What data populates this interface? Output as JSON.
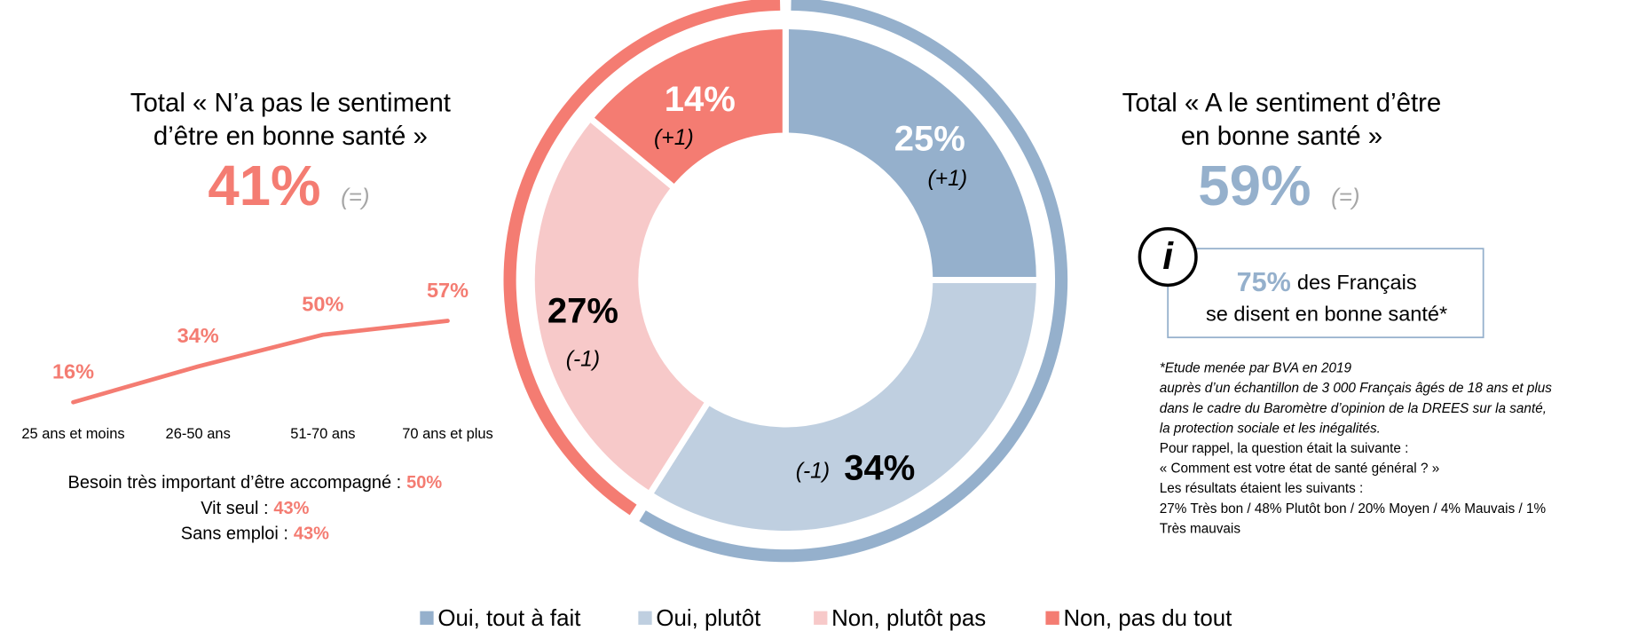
{
  "chart_data": [
    {
      "type": "pie",
      "categories": [
        "Oui, tout à fait",
        "Oui, plutôt",
        "Non, plutôt pas",
        "Non, pas du tout"
      ],
      "values": [
        25,
        34,
        27,
        14
      ],
      "value_labels": [
        "25%",
        "34%",
        "27%",
        "14%"
      ],
      "changes": [
        "(+1)",
        "(-1)",
        "(-1)",
        "(+1)"
      ],
      "colors": [
        "#95b0cc",
        "#bfcfe0",
        "#f7c9c9",
        "#f47c72"
      ]
    },
    {
      "type": "line",
      "categories": [
        "25 ans et moins",
        "26-50 ans",
        "51-70 ans",
        "70 ans et plus"
      ],
      "values": [
        16,
        34,
        50,
        57
      ],
      "value_labels": [
        "16%",
        "34%",
        "50%",
        "57%"
      ],
      "color": "#f47c72"
    }
  ],
  "negative": {
    "title": [
      "Total « N’a pas le sentiment",
      "d’être en bonne santé »"
    ],
    "value": 41,
    "value_label": "41%",
    "change": "(=)",
    "color": "#f47c72",
    "details": [
      {
        "label": "Besoin très important d’être accompagné :",
        "value": "50%"
      },
      {
        "label": "Vit seul :",
        "value": "43%"
      },
      {
        "label": "Sans emploi :",
        "value": "43%"
      }
    ]
  },
  "positive": {
    "title": [
      "Total « A le sentiment d’être",
      "en bonne santé »"
    ],
    "value": 59,
    "value_label": "59%",
    "change": "(=)",
    "color": "#95b0cc",
    "info": {
      "icon": "i",
      "value": "75%",
      "text": [
        "des Français",
        "se disent en bonne santé*"
      ]
    }
  },
  "footnote": {
    "italic": [
      "*Etude menée par BVA en 2019",
      "auprès d’un échantillon de 3 000 Français âgés de 18 ans et plus",
      "dans le cadre du Baromètre d’opinion de la DREES sur la santé,",
      "la protection sociale et les inégalités."
    ],
    "normal": [
      "Pour rappel, la question était la suivante :",
      "« Comment est votre état de santé général ? »",
      "Les résultats étaient les suivants :",
      "27% Très bon / 48% Plutôt bon / 20% Moyen / 4% Mauvais / 1%",
      "Très mauvais"
    ]
  }
}
